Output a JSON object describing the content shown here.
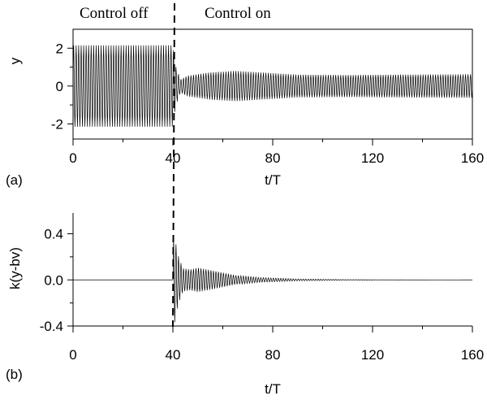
{
  "chart_data": [
    {
      "id": "a",
      "type": "line",
      "panel_label": "(a)",
      "xlabel": "t/T",
      "ylabel": "y",
      "xlim": [
        0,
        160
      ],
      "ylim": [
        -2.8,
        3.0
      ],
      "xticks": [
        0,
        40,
        80,
        120,
        160
      ],
      "xtick_labels": [
        "0",
        "40",
        "80",
        "120",
        "160"
      ],
      "yticks": [
        -2,
        0,
        2
      ],
      "ytick_labels": [
        "-2",
        "0",
        "2"
      ],
      "annotations": [
        "Control off",
        "Control on"
      ],
      "control_switch_t": 40,
      "series": [
        {
          "oscillation_period": 1,
          "envelope": [
            {
              "t": 0,
              "amplitude": 2.15
            },
            {
              "t": 40,
              "amplitude": 2.15
            },
            {
              "t": 41,
              "amplitude": 1.1
            },
            {
              "t": 43,
              "amplitude": 0.35
            },
            {
              "t": 46,
              "amplitude": 0.55
            },
            {
              "t": 55,
              "amplitude": 0.72
            },
            {
              "t": 65,
              "amplitude": 0.8
            },
            {
              "t": 75,
              "amplitude": 0.72
            },
            {
              "t": 90,
              "amplitude": 0.6
            },
            {
              "t": 110,
              "amplitude": 0.58
            },
            {
              "t": 130,
              "amplitude": 0.6
            },
            {
              "t": 160,
              "amplitude": 0.62
            }
          ]
        }
      ]
    },
    {
      "id": "b",
      "type": "line",
      "panel_label": "(b)",
      "xlabel": "t/T",
      "ylabel": "k(y-bv)",
      "xlim": [
        0,
        160
      ],
      "ylim": [
        -0.4,
        0.58
      ],
      "xticks": [
        0,
        40,
        80,
        120,
        160
      ],
      "xtick_labels": [
        "0",
        "40",
        "80",
        "120",
        "160"
      ],
      "yticks": [
        -0.4,
        0.0,
        0.4
      ],
      "ytick_labels": [
        "-0.4",
        "0.0",
        "0.4"
      ],
      "control_switch_t": 40,
      "series": [
        {
          "oscillation_period": 1,
          "envelope": [
            {
              "t": 0,
              "amplitude": 0
            },
            {
              "t": 40,
              "amplitude": 0
            },
            {
              "t": 40.3,
              "amplitude": 0.42
            },
            {
              "t": 42,
              "amplitude": 0.22
            },
            {
              "t": 44,
              "amplitude": 0.1
            },
            {
              "t": 47,
              "amplitude": 0.09
            },
            {
              "t": 50,
              "amplitude": 0.105
            },
            {
              "t": 55,
              "amplitude": 0.085
            },
            {
              "t": 65,
              "amplitude": 0.04
            },
            {
              "t": 75,
              "amplitude": 0.02
            },
            {
              "t": 90,
              "amplitude": 0.008
            },
            {
              "t": 110,
              "amplitude": 0.003
            },
            {
              "t": 135,
              "amplitude": 0.001
            },
            {
              "t": 160,
              "amplitude": 0
            }
          ]
        }
      ]
    }
  ]
}
